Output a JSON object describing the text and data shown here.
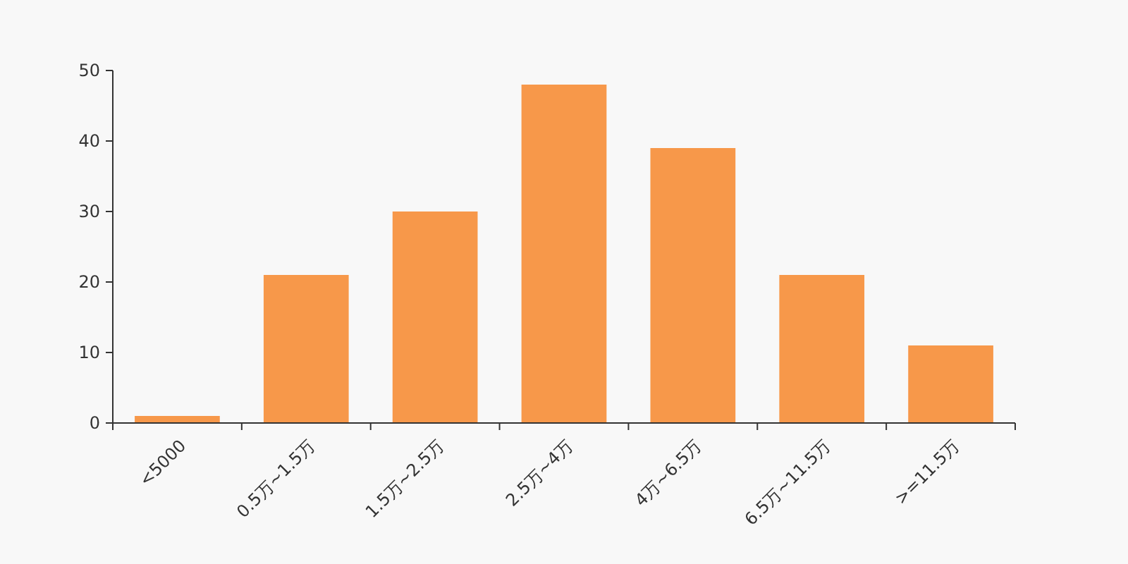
{
  "chart_data": {
    "type": "bar",
    "categories": [
      "<5000",
      "0.5万~1.5万",
      "1.5万~2.5万",
      "2.5万~4万",
      "4万~6.5万",
      "6.5万~11.5万",
      ">=11.5万"
    ],
    "values": [
      1,
      21,
      30,
      48,
      39,
      21,
      11
    ],
    "color": "#f7984a",
    "ylim": [
      0,
      50
    ],
    "yticks": [
      0,
      10,
      20,
      30,
      40,
      50
    ]
  }
}
